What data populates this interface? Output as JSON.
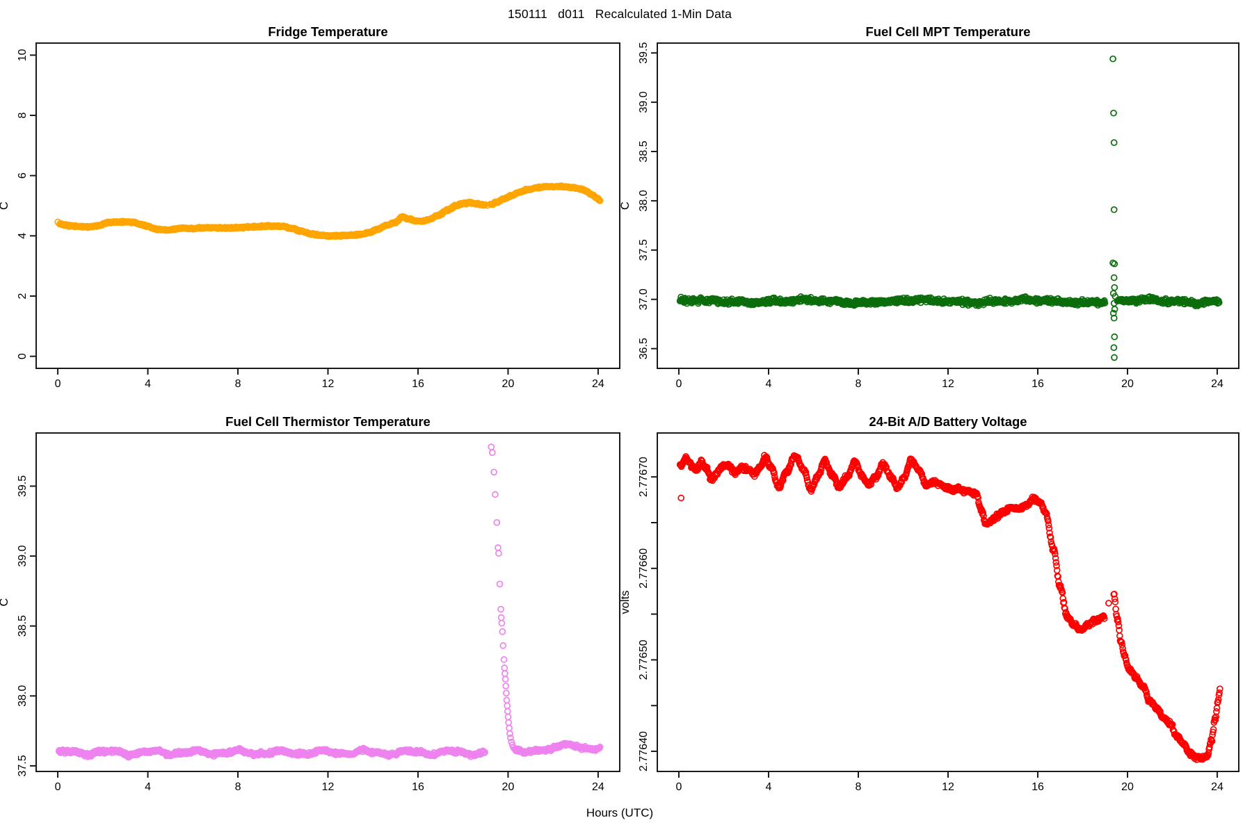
{
  "figure": {
    "main_title": "150111   d011   Recalculated 1-Min Data",
    "xlabel": "Hours (UTC)"
  },
  "chart_data": [
    {
      "id": "fridge",
      "type": "scatter",
      "title": "Fridge Temperature",
      "ylabel": "C",
      "color": "#FFA500",
      "xlim": [
        -0.96,
        24.96
      ],
      "ylim": [
        -0.4,
        10.4
      ],
      "xticks": {
        "values": [
          0,
          4,
          8,
          12,
          16,
          20,
          24
        ],
        "labels": [
          "0",
          "4",
          "8",
          "12",
          "16",
          "20",
          "24"
        ]
      },
      "yticks": {
        "values": [
          0,
          2,
          4,
          6,
          8,
          10
        ],
        "labels": [
          "0",
          "2",
          "4",
          "6",
          "8",
          "10"
        ]
      },
      "series": [
        {
          "mode": "keyframes",
          "sigma": 0.013,
          "gaps": [
            [
              18.98,
              19.21
            ]
          ],
          "keyframes": [
            [
              0.08,
              4.4
            ],
            [
              0.3,
              4.36
            ],
            [
              0.6,
              4.33
            ],
            [
              1.0,
              4.31
            ],
            [
              1.4,
              4.3
            ],
            [
              1.8,
              4.34
            ],
            [
              2.2,
              4.43
            ],
            [
              2.6,
              4.46
            ],
            [
              3.0,
              4.46
            ],
            [
              3.4,
              4.44
            ],
            [
              3.7,
              4.38
            ],
            [
              4.0,
              4.31
            ],
            [
              4.3,
              4.24
            ],
            [
              4.6,
              4.2
            ],
            [
              5.0,
              4.19
            ],
            [
              5.3,
              4.24
            ],
            [
              5.6,
              4.26
            ],
            [
              6.0,
              4.25
            ],
            [
              6.4,
              4.26
            ],
            [
              6.8,
              4.28
            ],
            [
              7.2,
              4.26
            ],
            [
              7.6,
              4.26
            ],
            [
              8.0,
              4.27
            ],
            [
              8.4,
              4.29
            ],
            [
              8.8,
              4.3
            ],
            [
              9.2,
              4.32
            ],
            [
              9.6,
              4.33
            ],
            [
              10.0,
              4.31
            ],
            [
              10.4,
              4.25
            ],
            [
              10.8,
              4.16
            ],
            [
              11.2,
              4.08
            ],
            [
              11.6,
              4.02
            ],
            [
              12.0,
              4.0
            ],
            [
              12.4,
              4.0
            ],
            [
              12.8,
              4.01
            ],
            [
              13.2,
              4.03
            ],
            [
              13.5,
              4.05
            ],
            [
              13.8,
              4.1
            ],
            [
              14.2,
              4.22
            ],
            [
              14.6,
              4.35
            ],
            [
              15.0,
              4.45
            ],
            [
              15.3,
              4.63
            ],
            [
              15.6,
              4.55
            ],
            [
              15.9,
              4.5
            ],
            [
              16.2,
              4.48
            ],
            [
              16.5,
              4.55
            ],
            [
              16.9,
              4.68
            ],
            [
              17.3,
              4.85
            ],
            [
              17.7,
              5.0
            ],
            [
              18.0,
              5.07
            ],
            [
              18.3,
              5.1
            ],
            [
              18.6,
              5.07
            ],
            [
              18.97,
              5.02
            ],
            [
              19.22,
              5.03
            ],
            [
              19.5,
              5.12
            ],
            [
              19.8,
              5.22
            ],
            [
              20.1,
              5.32
            ],
            [
              20.5,
              5.45
            ],
            [
              20.9,
              5.54
            ],
            [
              21.3,
              5.6
            ],
            [
              21.7,
              5.63
            ],
            [
              22.1,
              5.64
            ],
            [
              22.5,
              5.63
            ],
            [
              22.9,
              5.6
            ],
            [
              23.2,
              5.56
            ],
            [
              23.5,
              5.48
            ],
            [
              23.75,
              5.36
            ],
            [
              23.95,
              5.24
            ],
            [
              24.1,
              5.17
            ]
          ]
        }
      ],
      "points": [
        [
          0.0,
          4.46
        ],
        [
          19.08,
          5.01
        ]
      ]
    },
    {
      "id": "mpt",
      "type": "scatter",
      "title": "Fuel Cell MPT Temperature",
      "ylabel": "C",
      "color": "#0b6d0b",
      "xlim": [
        -0.96,
        24.96
      ],
      "ylim": [
        36.3,
        39.6
      ],
      "xticks": {
        "values": [
          0,
          4,
          8,
          12,
          16,
          20,
          24
        ],
        "labels": [
          "0",
          "4",
          "8",
          "12",
          "16",
          "20",
          "24"
        ]
      },
      "yticks": {
        "values": [
          36.5,
          37.0,
          37.5,
          38.0,
          38.5,
          39.0,
          39.5
        ],
        "labels": [
          "36.5",
          "37.0",
          "37.5",
          "38.0",
          "38.5",
          "39.0",
          "39.5"
        ]
      },
      "series": [
        {
          "mode": "flat",
          "base": 36.98,
          "sigma": 0.012,
          "wobbles": [
            [
              0.012,
              5.0,
              0.8
            ],
            [
              0.007,
              1.4,
              2.0
            ]
          ],
          "segments": [
            [
              0.05,
              19.0
            ],
            [
              19.55,
              24.1
            ]
          ]
        }
      ],
      "points": [
        [
          19.35,
          39.44
        ],
        [
          19.38,
          38.89
        ],
        [
          19.4,
          38.59
        ],
        [
          19.4,
          37.91
        ],
        [
          19.35,
          37.37
        ],
        [
          19.42,
          37.36
        ],
        [
          19.4,
          37.22
        ],
        [
          19.42,
          37.12
        ],
        [
          19.37,
          37.06
        ],
        [
          19.45,
          37.03
        ],
        [
          19.4,
          36.96
        ],
        [
          19.43,
          36.9
        ],
        [
          19.37,
          36.86
        ],
        [
          19.4,
          36.81
        ],
        [
          19.42,
          36.62
        ],
        [
          19.39,
          36.51
        ],
        [
          19.41,
          36.41
        ]
      ]
    },
    {
      "id": "thermistor",
      "type": "scatter",
      "title": "Fuel Cell Thermistor Temperature",
      "ylabel": "C",
      "color": "#EE82EE",
      "xlim": [
        -0.96,
        24.96
      ],
      "ylim": [
        37.46,
        39.88
      ],
      "xticks": {
        "values": [
          0,
          4,
          8,
          12,
          16,
          20,
          24
        ],
        "labels": [
          "0",
          "4",
          "8",
          "12",
          "16",
          "20",
          "24"
        ]
      },
      "yticks": {
        "values": [
          37.5,
          38.0,
          38.5,
          39.0,
          39.5
        ],
        "labels": [
          "37.5",
          "38.0",
          "38.5",
          "39.0",
          "39.5"
        ]
      },
      "series": [
        {
          "mode": "flat",
          "base": 37.595,
          "sigma": 0.006,
          "wobbles": [
            [
              0.013,
              1.9,
              0.3
            ],
            [
              0.006,
              0.9,
              1.7
            ]
          ],
          "segments": [
            [
              0.05,
              18.97
            ]
          ]
        },
        {
          "mode": "keyframes",
          "sigma": 0.006,
          "gaps": [],
          "keyframes": [
            [
              20.3,
              37.615
            ],
            [
              20.8,
              37.6
            ],
            [
              21.3,
              37.61
            ],
            [
              21.8,
              37.615
            ],
            [
              22.1,
              37.63
            ],
            [
              22.4,
              37.65
            ],
            [
              22.7,
              37.655
            ],
            [
              23.0,
              37.64
            ],
            [
              23.4,
              37.625
            ],
            [
              23.8,
              37.62
            ],
            [
              24.1,
              37.625
            ]
          ]
        }
      ],
      "points": [
        [
          19.25,
          39.78
        ],
        [
          19.3,
          39.74
        ],
        [
          19.37,
          39.6
        ],
        [
          19.43,
          39.44
        ],
        [
          19.5,
          39.24
        ],
        [
          19.55,
          39.06
        ],
        [
          19.58,
          39.02
        ],
        [
          19.63,
          38.8
        ],
        [
          19.68,
          38.62
        ],
        [
          19.7,
          38.56
        ],
        [
          19.72,
          38.52
        ],
        [
          19.75,
          38.46
        ],
        [
          19.78,
          38.36
        ],
        [
          19.82,
          38.26
        ],
        [
          19.84,
          38.2
        ],
        [
          19.86,
          38.16
        ],
        [
          19.88,
          38.12
        ],
        [
          19.9,
          38.07
        ],
        [
          19.92,
          38.02
        ],
        [
          19.94,
          37.97
        ],
        [
          19.96,
          37.93
        ],
        [
          19.98,
          37.89
        ],
        [
          20.0,
          37.85
        ],
        [
          20.02,
          37.81
        ],
        [
          20.05,
          37.77
        ],
        [
          20.08,
          37.73
        ],
        [
          20.11,
          37.7
        ],
        [
          20.15,
          37.67
        ],
        [
          20.19,
          37.65
        ],
        [
          20.24,
          37.63
        ],
        [
          20.3,
          37.62
        ]
      ]
    },
    {
      "id": "battery-voltage",
      "type": "scatter",
      "title": "24-Bit A/D Battery Voltage",
      "ylabel": "volts",
      "color": "#FF0000",
      "xlim": [
        -0.96,
        24.96
      ],
      "ylim": [
        2.776378,
        2.776748
      ],
      "xticks": {
        "values": [
          0,
          4,
          8,
          12,
          16,
          20,
          24
        ],
        "labels": [
          "0",
          "4",
          "8",
          "12",
          "16",
          "20",
          "24"
        ]
      },
      "yticks": {
        "values": [
          2.7764,
          2.77645,
          2.7765,
          2.77655,
          2.7766,
          2.77665,
          2.7767
        ],
        "labels": [
          "2.77640",
          "",
          "2.77650",
          "",
          "2.77660",
          "",
          "2.77670"
        ]
      },
      "series": [
        {
          "mode": "keyframes",
          "sigma": 1.2e-06,
          "gaps": [
            [
              18.99,
              19.37
            ]
          ],
          "keyframes": [
            [
              0.05,
              2.776712
            ],
            [
              0.3,
              2.77672
            ],
            [
              0.55,
              2.776713
            ],
            [
              0.8,
              2.776708
            ],
            [
              1.0,
              2.776717
            ],
            [
              1.2,
              2.77671
            ],
            [
              1.45,
              2.776698
            ],
            [
              1.7,
              2.776704
            ],
            [
              1.95,
              2.776712
            ],
            [
              2.2,
              2.776713
            ],
            [
              2.5,
              2.776705
            ],
            [
              2.8,
              2.77671
            ],
            [
              3.1,
              2.776708
            ],
            [
              3.35,
              2.776703
            ],
            [
              3.6,
              2.77671
            ],
            [
              3.85,
              2.776722
            ],
            [
              4.1,
              2.77671
            ],
            [
              4.45,
              2.77669
            ],
            [
              4.8,
              2.776705
            ],
            [
              5.2,
              2.776723
            ],
            [
              5.55,
              2.776708
            ],
            [
              5.9,
              2.776686
            ],
            [
              6.2,
              2.7767
            ],
            [
              6.5,
              2.776718
            ],
            [
              6.85,
              2.776702
            ],
            [
              7.15,
              2.776689
            ],
            [
              7.5,
              2.7767
            ],
            [
              7.85,
              2.776717
            ],
            [
              8.15,
              2.776702
            ],
            [
              8.45,
              2.776692
            ],
            [
              8.8,
              2.7767
            ],
            [
              9.1,
              2.776715
            ],
            [
              9.45,
              2.7767
            ],
            [
              9.75,
              2.776688
            ],
            [
              10.05,
              2.7767
            ],
            [
              10.35,
              2.776719
            ],
            [
              10.7,
              2.776708
            ],
            [
              11.05,
              2.77669
            ],
            [
              11.35,
              2.776695
            ],
            [
              11.6,
              2.776693
            ],
            [
              11.9,
              2.776689
            ],
            [
              12.2,
              2.776686
            ],
            [
              12.5,
              2.776687
            ],
            [
              12.8,
              2.776684
            ],
            [
              13.05,
              2.776683
            ],
            [
              13.25,
              2.776682
            ],
            [
              13.45,
              2.776665
            ],
            [
              13.7,
              2.776649
            ],
            [
              13.95,
              2.776652
            ],
            [
              14.2,
              2.776658
            ],
            [
              14.5,
              2.776662
            ],
            [
              14.8,
              2.776666
            ],
            [
              15.1,
              2.776665
            ],
            [
              15.4,
              2.776668
            ],
            [
              15.8,
              2.776675
            ],
            [
              16.1,
              2.776672
            ],
            [
              16.35,
              2.776661
            ],
            [
              16.7,
              2.77662
            ],
            [
              17.0,
              2.77658
            ],
            [
              17.3,
              2.776548
            ],
            [
              17.6,
              2.776538
            ],
            [
              17.95,
              2.776533
            ],
            [
              18.2,
              2.776538
            ],
            [
              18.5,
              2.776542
            ],
            [
              18.75,
              2.776545
            ],
            [
              18.98,
              2.776547
            ],
            [
              19.38,
              2.776573
            ],
            [
              19.55,
              2.776545
            ],
            [
              19.7,
              2.77652
            ],
            [
              19.85,
              2.776505
            ],
            [
              20.1,
              2.776488
            ],
            [
              20.4,
              2.77648
            ],
            [
              20.7,
              2.77647
            ],
            [
              21.0,
              2.776455
            ],
            [
              21.3,
              2.776447
            ],
            [
              21.6,
              2.776437
            ],
            [
              21.9,
              2.77643
            ],
            [
              22.2,
              2.776417
            ],
            [
              22.5,
              2.776408
            ],
            [
              22.75,
              2.776398
            ],
            [
              23.0,
              2.776394
            ],
            [
              23.3,
              2.776393
            ],
            [
              23.55,
              2.776395
            ],
            [
              23.75,
              2.776412
            ],
            [
              23.9,
              2.776435
            ],
            [
              24.05,
              2.776458
            ],
            [
              24.12,
              2.77647
            ]
          ]
        }
      ],
      "points": [
        [
          0.1,
          2.776677
        ],
        [
          19.16,
          2.776562
        ]
      ]
    }
  ]
}
